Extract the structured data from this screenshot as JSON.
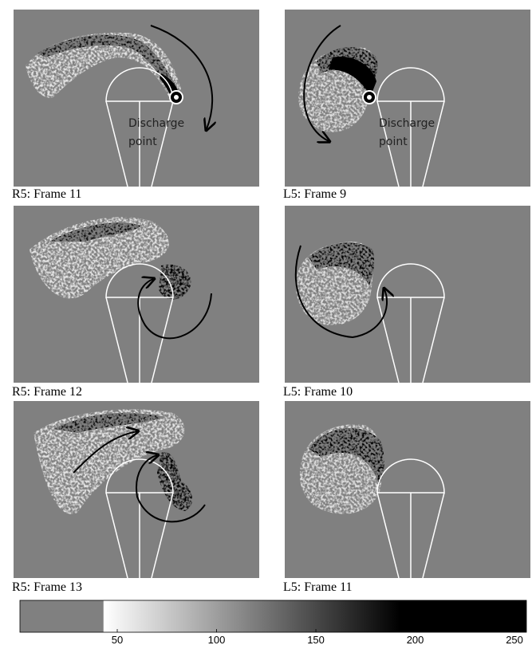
{
  "panels": [
    {
      "caption": "R5: Frame 11",
      "annotation": [
        "Discharge",
        "point"
      ]
    },
    {
      "caption": "L5: Frame 9",
      "annotation": [
        "Discharge",
        "point"
      ]
    },
    {
      "caption": "R5: Frame 12"
    },
    {
      "caption": "L5: Frame 10"
    },
    {
      "caption": "R5: Frame 13"
    },
    {
      "caption": "L5: Frame 11"
    }
  ],
  "colorbar": {
    "lim": [
      1,
      256
    ],
    "ticks": [
      50,
      100,
      150,
      200,
      250
    ]
  }
}
